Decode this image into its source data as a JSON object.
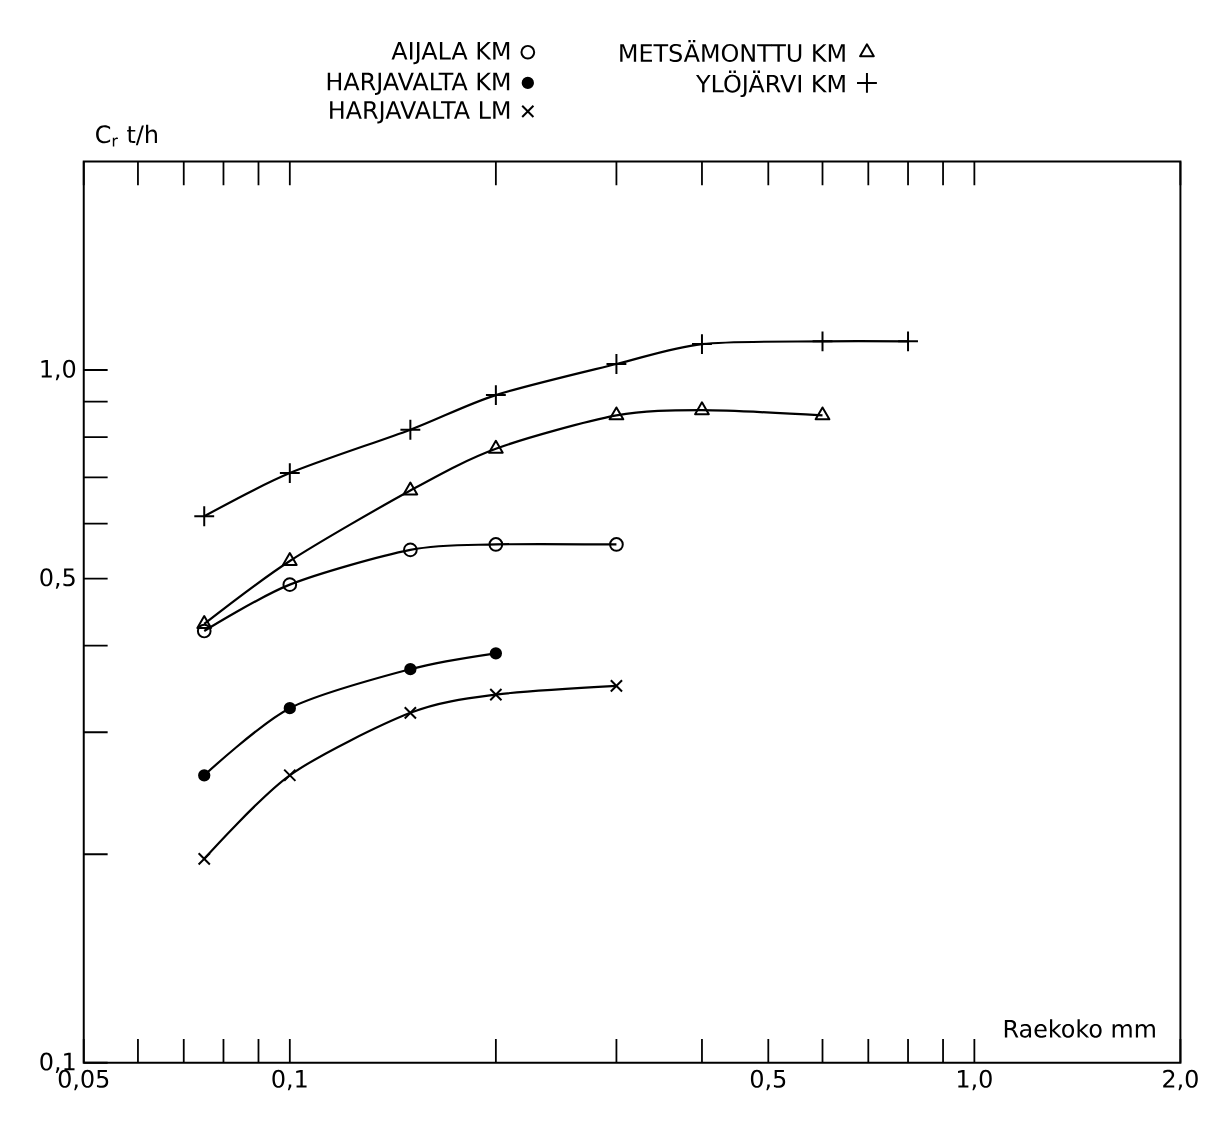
{
  "chart_data": {
    "type": "line",
    "xlabel": "Raekoko mm",
    "ylabel": "C$_{r}$ t/h",
    "log": "xy",
    "grid": false,
    "legend": "top",
    "line_style": "solid",
    "xlim": [
      0.05,
      2.0
    ],
    "ylim": [
      0.1,
      2.0
    ],
    "xticks": [
      {
        "value": 0.05,
        "label": "0,05"
      },
      {
        "value": 0.06,
        "label": null
      },
      {
        "value": 0.07,
        "label": null
      },
      {
        "value": 0.08,
        "label": null
      },
      {
        "value": 0.09,
        "label": null
      },
      {
        "value": 0.1,
        "label": "0,1"
      },
      {
        "value": 0.2,
        "label": null
      },
      {
        "value": 0.3,
        "label": null
      },
      {
        "value": 0.4,
        "label": null
      },
      {
        "value": 0.5,
        "label": "0,5"
      },
      {
        "value": 0.6,
        "label": null
      },
      {
        "value": 0.7,
        "label": null
      },
      {
        "value": 0.8,
        "label": null
      },
      {
        "value": 0.9,
        "label": null
      },
      {
        "value": 1.0,
        "label": "1,0"
      },
      {
        "value": 2.0,
        "label": "2,0"
      }
    ],
    "yticks": [
      {
        "value": 0.1,
        "label": "0,1"
      },
      {
        "value": 0.2,
        "label": null
      },
      {
        "value": 0.3,
        "label": null
      },
      {
        "value": 0.4,
        "label": null
      },
      {
        "value": 0.5,
        "label": "0,5"
      },
      {
        "value": 0.6,
        "label": null
      },
      {
        "value": 0.7,
        "label": null
      },
      {
        "value": 0.8,
        "label": null
      },
      {
        "value": 0.9,
        "label": null
      },
      {
        "value": 1.0,
        "label": "1,0"
      }
    ],
    "series": [
      {
        "name": "AIJALA KM",
        "color": "#000000",
        "marker": "circle",
        "x": [
          0.075,
          0.1,
          0.15,
          0.2,
          0.3
        ],
        "values": [
          0.42,
          0.49,
          0.55,
          0.56,
          0.56
        ]
      },
      {
        "name": "METSÄMONTTU KM",
        "color": "#000000",
        "marker": "triangle",
        "x": [
          0.075,
          0.1,
          0.15,
          0.2,
          0.3,
          0.4,
          0.6
        ],
        "values": [
          0.43,
          0.53,
          0.67,
          0.77,
          0.86,
          0.875,
          0.86
        ]
      },
      {
        "name": "HARJAVALTA KM",
        "color": "#000000",
        "marker": "dot",
        "x": [
          0.075,
          0.1,
          0.15,
          0.2
        ],
        "values": [
          0.26,
          0.325,
          0.37,
          0.39
        ]
      },
      {
        "name": "YLÖJÄRVI KM",
        "color": "#000000",
        "marker": "plus",
        "x": [
          0.075,
          0.1,
          0.15,
          0.2,
          0.3,
          0.4,
          0.6,
          0.8
        ],
        "values": [
          0.615,
          0.71,
          0.82,
          0.92,
          1.02,
          1.09,
          1.1,
          1.1
        ]
      },
      {
        "name": "HARJAVALTA LM",
        "color": "#000000",
        "marker": "cross",
        "x": [
          0.075,
          0.1,
          0.15,
          0.2,
          0.3
        ],
        "values": [
          0.197,
          0.26,
          0.32,
          0.34,
          0.35
        ]
      }
    ]
  }
}
